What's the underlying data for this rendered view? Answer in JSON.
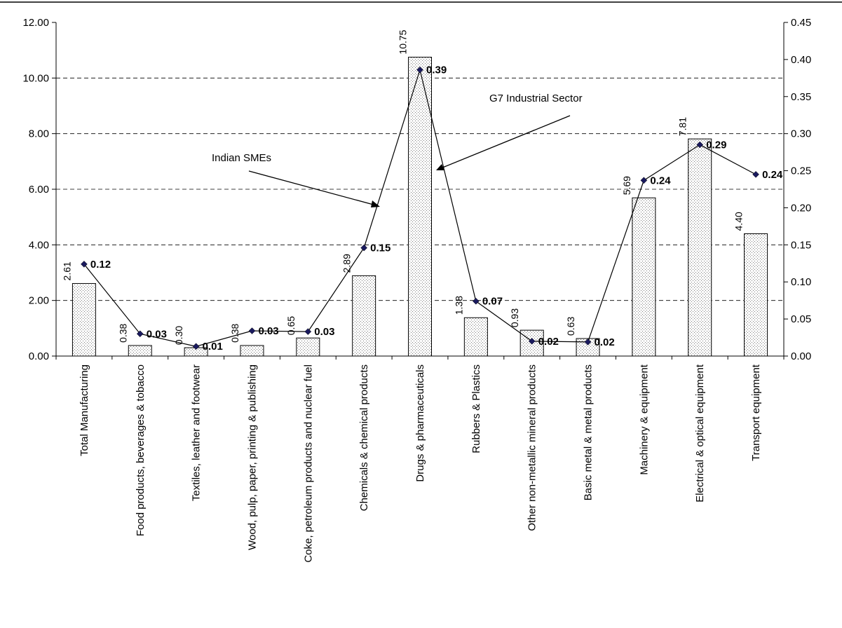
{
  "chart_data": {
    "type": "bar",
    "categories": [
      "Total Manufacturing",
      "Food products, beverages & tobacco",
      "Textiles, leather and footwear",
      "Wood, pulp, paper, printing & publishing",
      "Coke, petroleum products and nuclear fuel",
      "Chemicals & chemical products",
      "Drugs & pharmaceuticals",
      "Rubbers & Plastics",
      "Other non-metallic mineral products",
      "Basic metal & metal products",
      "Machinery & equipment",
      "Electrical & optical equipment",
      "Transport equipment"
    ],
    "series": [
      {
        "axis": "left",
        "kind": "bar",
        "values": [
          2.61,
          0.38,
          0.3,
          0.38,
          0.65,
          2.89,
          10.75,
          1.38,
          0.93,
          0.63,
          5.69,
          7.81,
          4.4
        ],
        "labels": [
          "2.61",
          "0.38",
          "0.30",
          "0.38",
          "0.65",
          "2.89",
          "10.75",
          "1.38",
          "0.93",
          "0.63",
          "5.69",
          "7.81",
          "4.40"
        ]
      },
      {
        "axis": "right",
        "kind": "line",
        "values": [
          0.124,
          0.03,
          0.013,
          0.034,
          0.033,
          0.146,
          0.386,
          0.074,
          0.02,
          0.019,
          0.237,
          0.285,
          0.245
        ],
        "labels": [
          "0.12",
          "0.03",
          "0.01",
          "0.03",
          "0.03",
          "0.15",
          "0.39",
          "0.07",
          "0.02",
          "0.02",
          "0.24",
          "0.29",
          "0.24"
        ]
      }
    ],
    "y_left": {
      "ylim": [
        0,
        12
      ],
      "ticks": [
        "0.00",
        "2.00",
        "4.00",
        "6.00",
        "8.00",
        "10.00",
        "12.00"
      ]
    },
    "y_right": {
      "ylim": [
        0,
        0.45
      ],
      "ticks": [
        "0.00",
        "0.05",
        "0.10",
        "0.15",
        "0.20",
        "0.25",
        "0.30",
        "0.35",
        "0.40",
        "0.45"
      ]
    },
    "grid": "horizontal dashed",
    "annotations": [
      {
        "text": "Indian SMEs"
      },
      {
        "text": "G7 Industrial Sector"
      }
    ],
    "colors": {
      "bar_fill": "#ffffff",
      "bar_dots": "#777777",
      "line": "#000000",
      "marker": "#1a1a5e"
    }
  }
}
